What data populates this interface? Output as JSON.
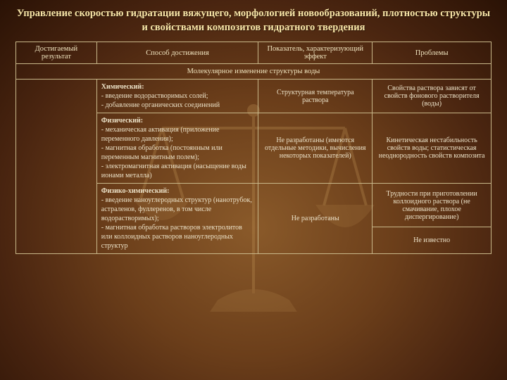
{
  "title": "Управление скоростью гидратации вяжущего, морфологией новообразований, плотностью структуры и свойствами композитов гидратного твердения",
  "style": {
    "title_color": "#f8e6a8",
    "text_color": "#ece2c8",
    "border_color": "#c9b88a",
    "background_gradient": [
      "#8a5a2a",
      "#6b3e1a",
      "#4a2510",
      "#2a1205"
    ],
    "bg_image_tint": "#c79a5a",
    "title_fontsize": 14.5,
    "header_fontsize": 10.5,
    "cell_fontsize": 10,
    "font_family": "Times New Roman"
  },
  "table": {
    "columns": [
      {
        "key": "result",
        "label": "Достигаемый результат",
        "width_pct": 17
      },
      {
        "key": "method",
        "label": "Способ достижения",
        "width_pct": 34
      },
      {
        "key": "indicator",
        "label": "Показатель, характеризующий эффект",
        "width_pct": 24
      },
      {
        "key": "problems",
        "label": "Проблемы",
        "width_pct": 25
      }
    ],
    "section_label": "Молекулярное изменение структуры воды",
    "rows": [
      {
        "method_title": "Химический:",
        "method_body": "- введение водорастворимых солей;\n- добавление органических соединений",
        "indicator": "Структурная температура раствора",
        "problems": [
          "Свойства раствора зависят от свойств фонового растворителя (воды)"
        ]
      },
      {
        "method_title": "Физический:",
        "method_body": "- механическая активация (приложение переменного давления);\n- магнитная обработка (постоянным или переменным магнитным полем);\n- электромагнитная активация (насыщение воды ионами металла)",
        "indicator": "Не разработаны (имеются отдельные методики, вычисления некоторых показателей)",
        "problems": [
          "Кинетическая нестабильность свойств воды; статистическая неоднородность свойств композита"
        ]
      },
      {
        "method_title": "Физико-химический:",
        "method_body": "- введение наноуглеродных структур (нанотрубок, астраленов, фуллеренов, в том числе водорастворимых);\n- магнитная обработка растворов электролитов или коллоидных растворов наноуглеродных структур",
        "indicator": "Не разработаны",
        "problems": [
          "Трудности при приготовлении коллоидного раствора (не смачивание, плохое диспергирование)",
          "Не известно"
        ]
      }
    ]
  }
}
